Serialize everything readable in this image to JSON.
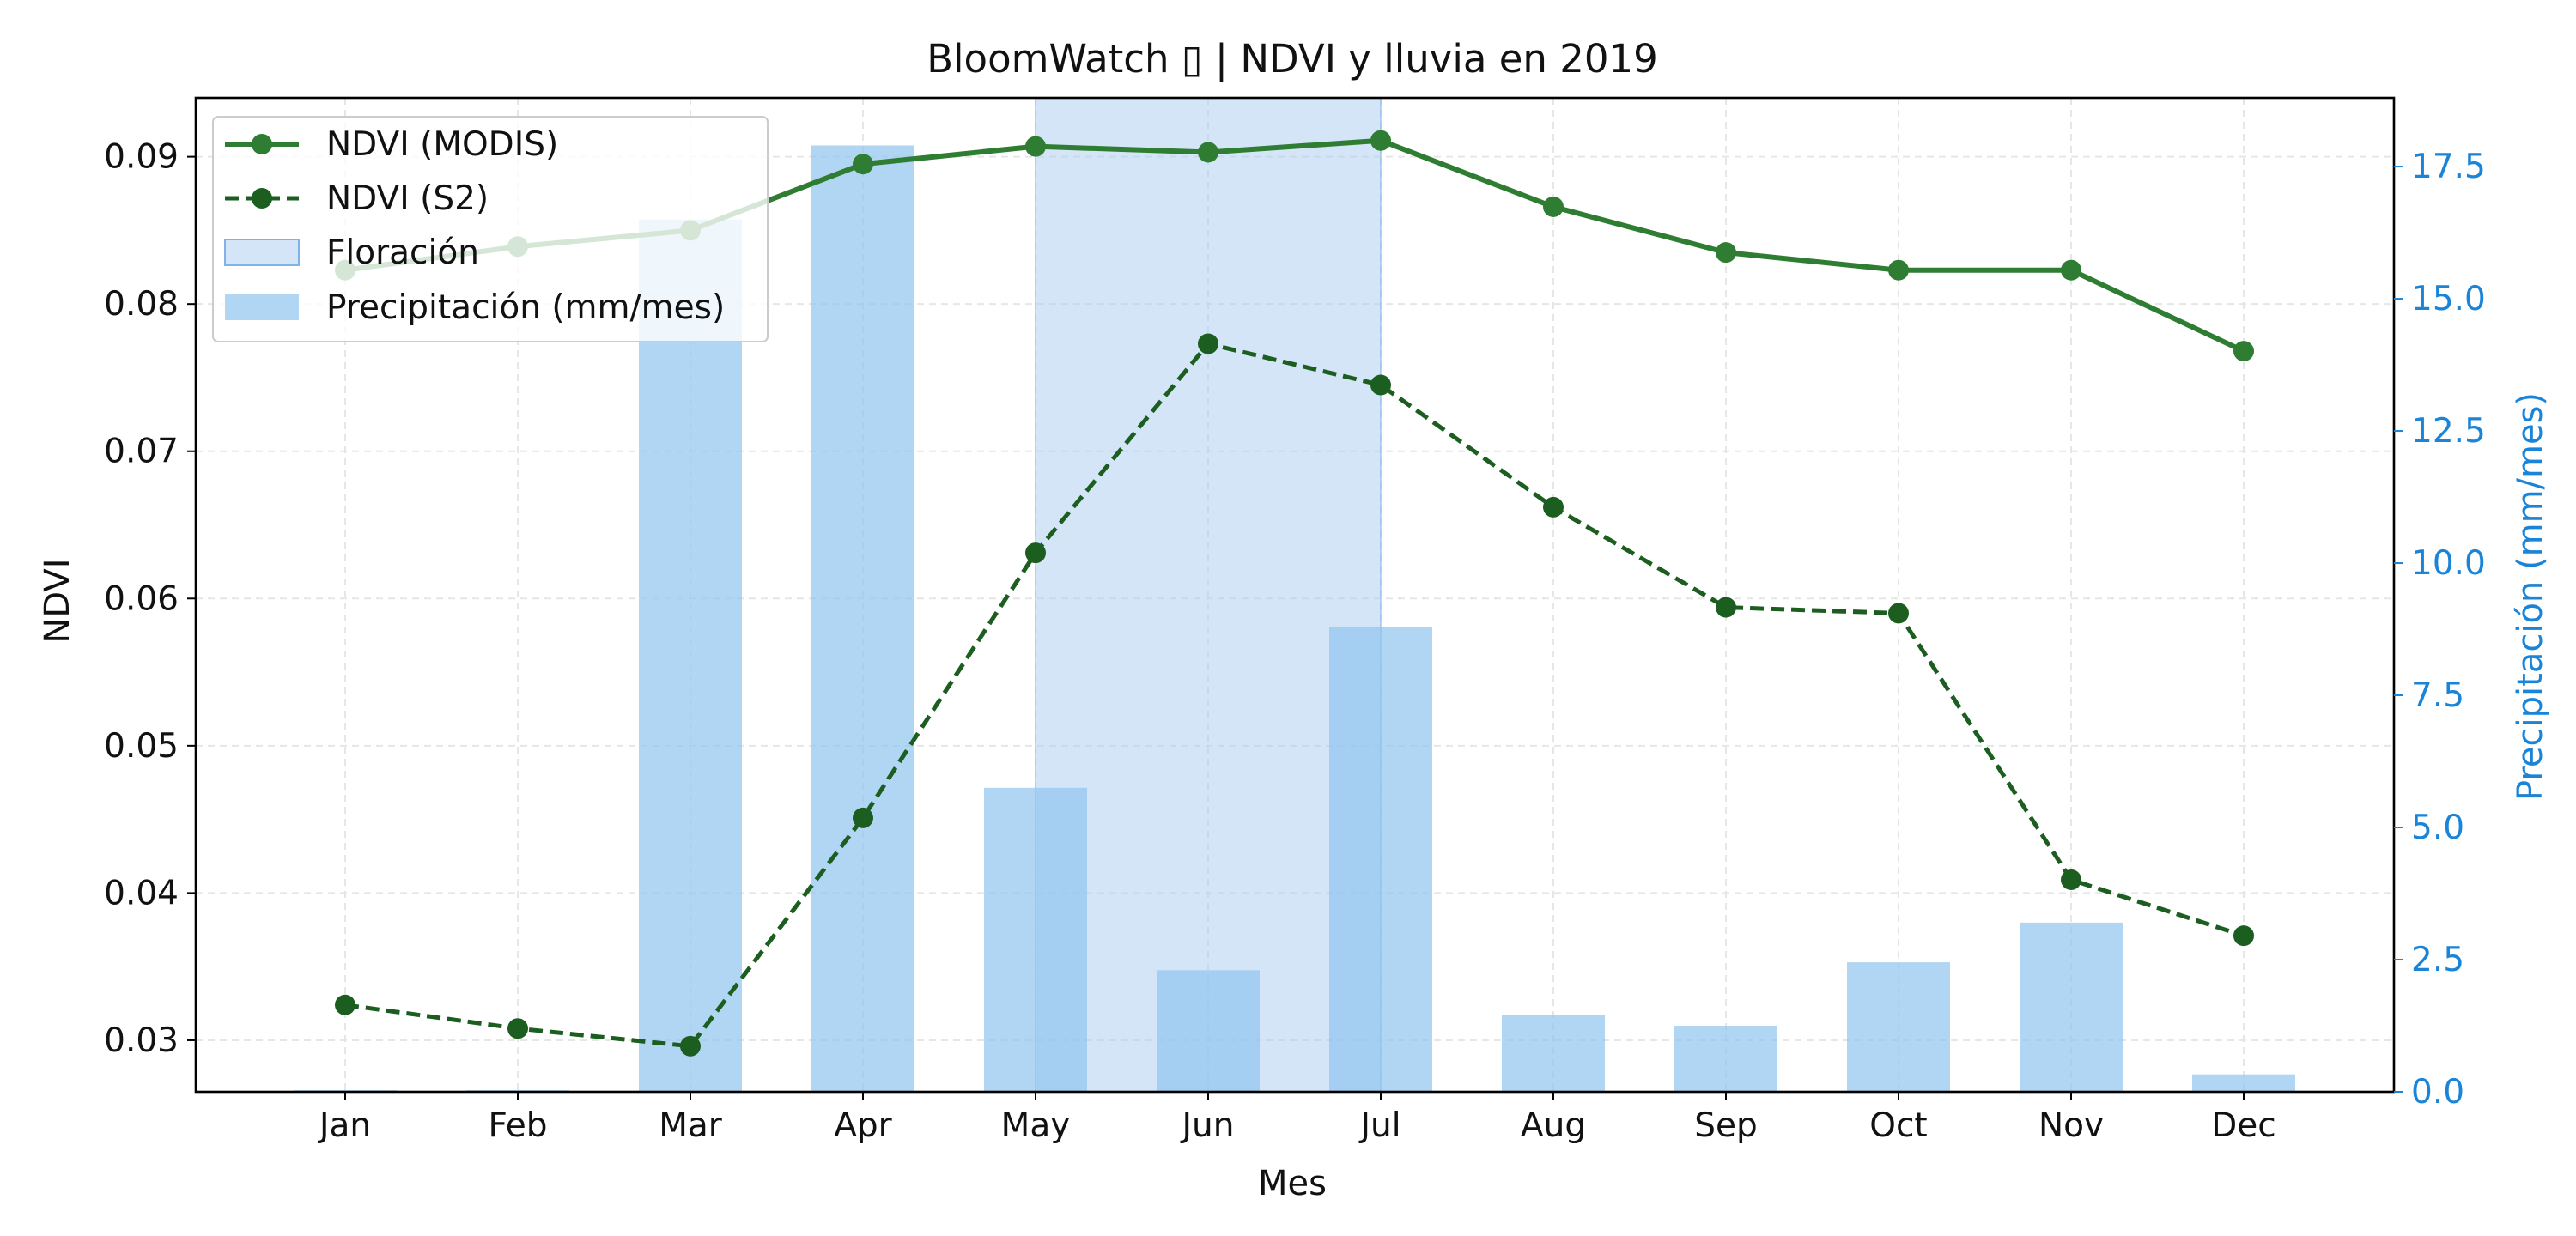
{
  "chart_data": {
    "type": "bar+line",
    "title": "BloomWatch ▯ | NDVI y lluvia en 2019",
    "xlabel": "Mes",
    "ylabel_left": "NDVI",
    "ylabel_right": "Precipitación (mm/mes)",
    "categories": [
      "Jan",
      "Feb",
      "Mar",
      "Apr",
      "May",
      "Jun",
      "Jul",
      "Aug",
      "Sep",
      "Oct",
      "Nov",
      "Dec"
    ],
    "ylim_left": [
      0.0265,
      0.094
    ],
    "ylim_right": [
      0.0,
      18.8
    ],
    "yticks_left": [
      "0.03",
      "0.04",
      "0.05",
      "0.06",
      "0.07",
      "0.08",
      "0.09"
    ],
    "yticks_right": [
      "0.0",
      "2.5",
      "5.0",
      "7.5",
      "10.0",
      "12.5",
      "15.0",
      "17.5"
    ],
    "grid": true,
    "legend_position": "top-left",
    "colors": {
      "ndvi_modis": "#2e7d32",
      "ndvi_s2": "#1b5e20",
      "precip": "#90c4ef",
      "flowering": "#a9cbef",
      "right_axis": "#1a84d8"
    },
    "series": [
      {
        "name": "NDVI (MODIS)",
        "axis": "left",
        "style": "solid-line-markers",
        "values": [
          0.0823,
          0.0839,
          0.085,
          0.0895,
          0.0907,
          0.0903,
          0.0911,
          0.0866,
          0.0835,
          0.0823,
          0.0823,
          0.0768
        ]
      },
      {
        "name": "NDVI (S2)",
        "axis": "left",
        "style": "dashed-line-markers",
        "values": [
          0.0324,
          0.0308,
          0.0296,
          0.0451,
          0.0631,
          0.0773,
          0.0745,
          0.0662,
          0.0594,
          0.059,
          0.0409,
          0.0371
        ]
      },
      {
        "name": "Precipitación (mm/mes)",
        "axis": "right",
        "style": "bar",
        "values": [
          0.03,
          0.03,
          16.5,
          17.9,
          5.75,
          2.3,
          8.8,
          1.45,
          1.25,
          2.45,
          3.2,
          0.33
        ]
      }
    ],
    "flowering_window": {
      "label": "Floración",
      "start": "May",
      "end": "Jul"
    }
  }
}
